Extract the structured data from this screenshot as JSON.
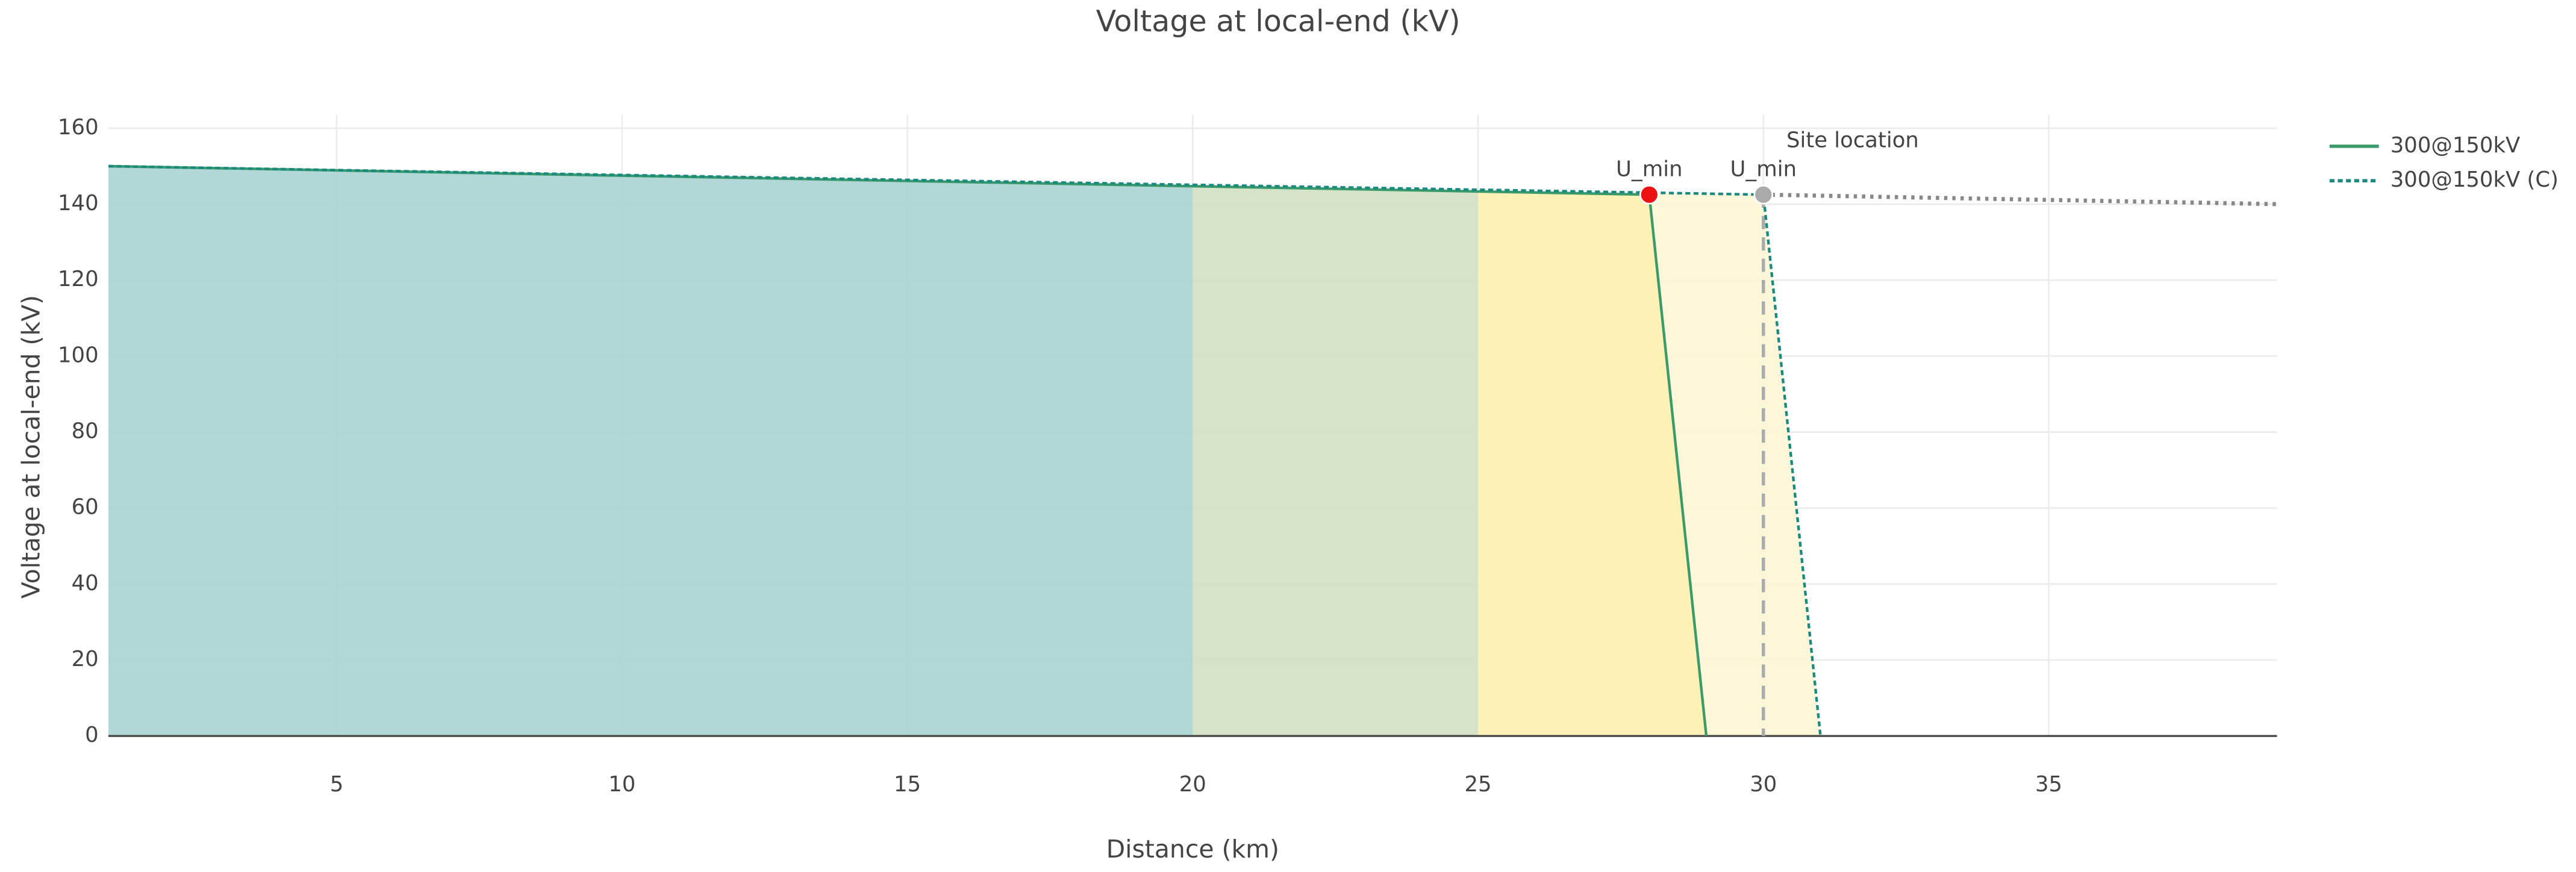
{
  "chart_data": {
    "type": "line",
    "title": "Voltage at local-end (kV)",
    "x_label": "Distance (km)",
    "y_label": "Voltage at local-end (kV)",
    "xlim": [
      1,
      39
    ],
    "ylim": [
      0,
      160
    ],
    "xticks": [
      5,
      10,
      15,
      20,
      25,
      30,
      35
    ],
    "yticks": [
      0,
      20,
      40,
      60,
      80,
      100,
      120,
      140,
      160
    ],
    "grid": true,
    "legend": "top-right",
    "series": [
      {
        "name": "300@150kV",
        "color": "#3a9a6a",
        "dash": "solid",
        "x": [
          1,
          28,
          29
        ],
        "values": [
          150,
          142.5,
          0
        ]
      },
      {
        "name": "300@150kV (C)",
        "color": "#1a8a80",
        "dash": "dotted",
        "x": [
          1,
          30,
          31
        ],
        "values": [
          150,
          142.5,
          0
        ]
      }
    ],
    "extension": {
      "color": "#888888",
      "x": [
        30,
        39
      ],
      "values": [
        142.5,
        140
      ]
    },
    "fill_zones": [
      {
        "series": 1,
        "x": [
          25,
          31
        ],
        "color": "#fdf6d6"
      },
      {
        "series": 0,
        "x": [
          1,
          20
        ],
        "color": "#a9d3d1"
      },
      {
        "series": 0,
        "x": [
          20,
          25
        ],
        "color": "#d0e1c3"
      },
      {
        "series": 0,
        "x": [
          25,
          29
        ],
        "color": "#fdefb0"
      }
    ],
    "markers": [
      {
        "label": "U_min",
        "x": 28,
        "y": 142.5,
        "color": "#ee1111"
      },
      {
        "label": "U_min",
        "x": 30,
        "y": 142.5,
        "color": "#aaaaaa"
      }
    ],
    "site_line": {
      "x": 30,
      "label": "Site location",
      "color": "#aaaaaa"
    }
  }
}
